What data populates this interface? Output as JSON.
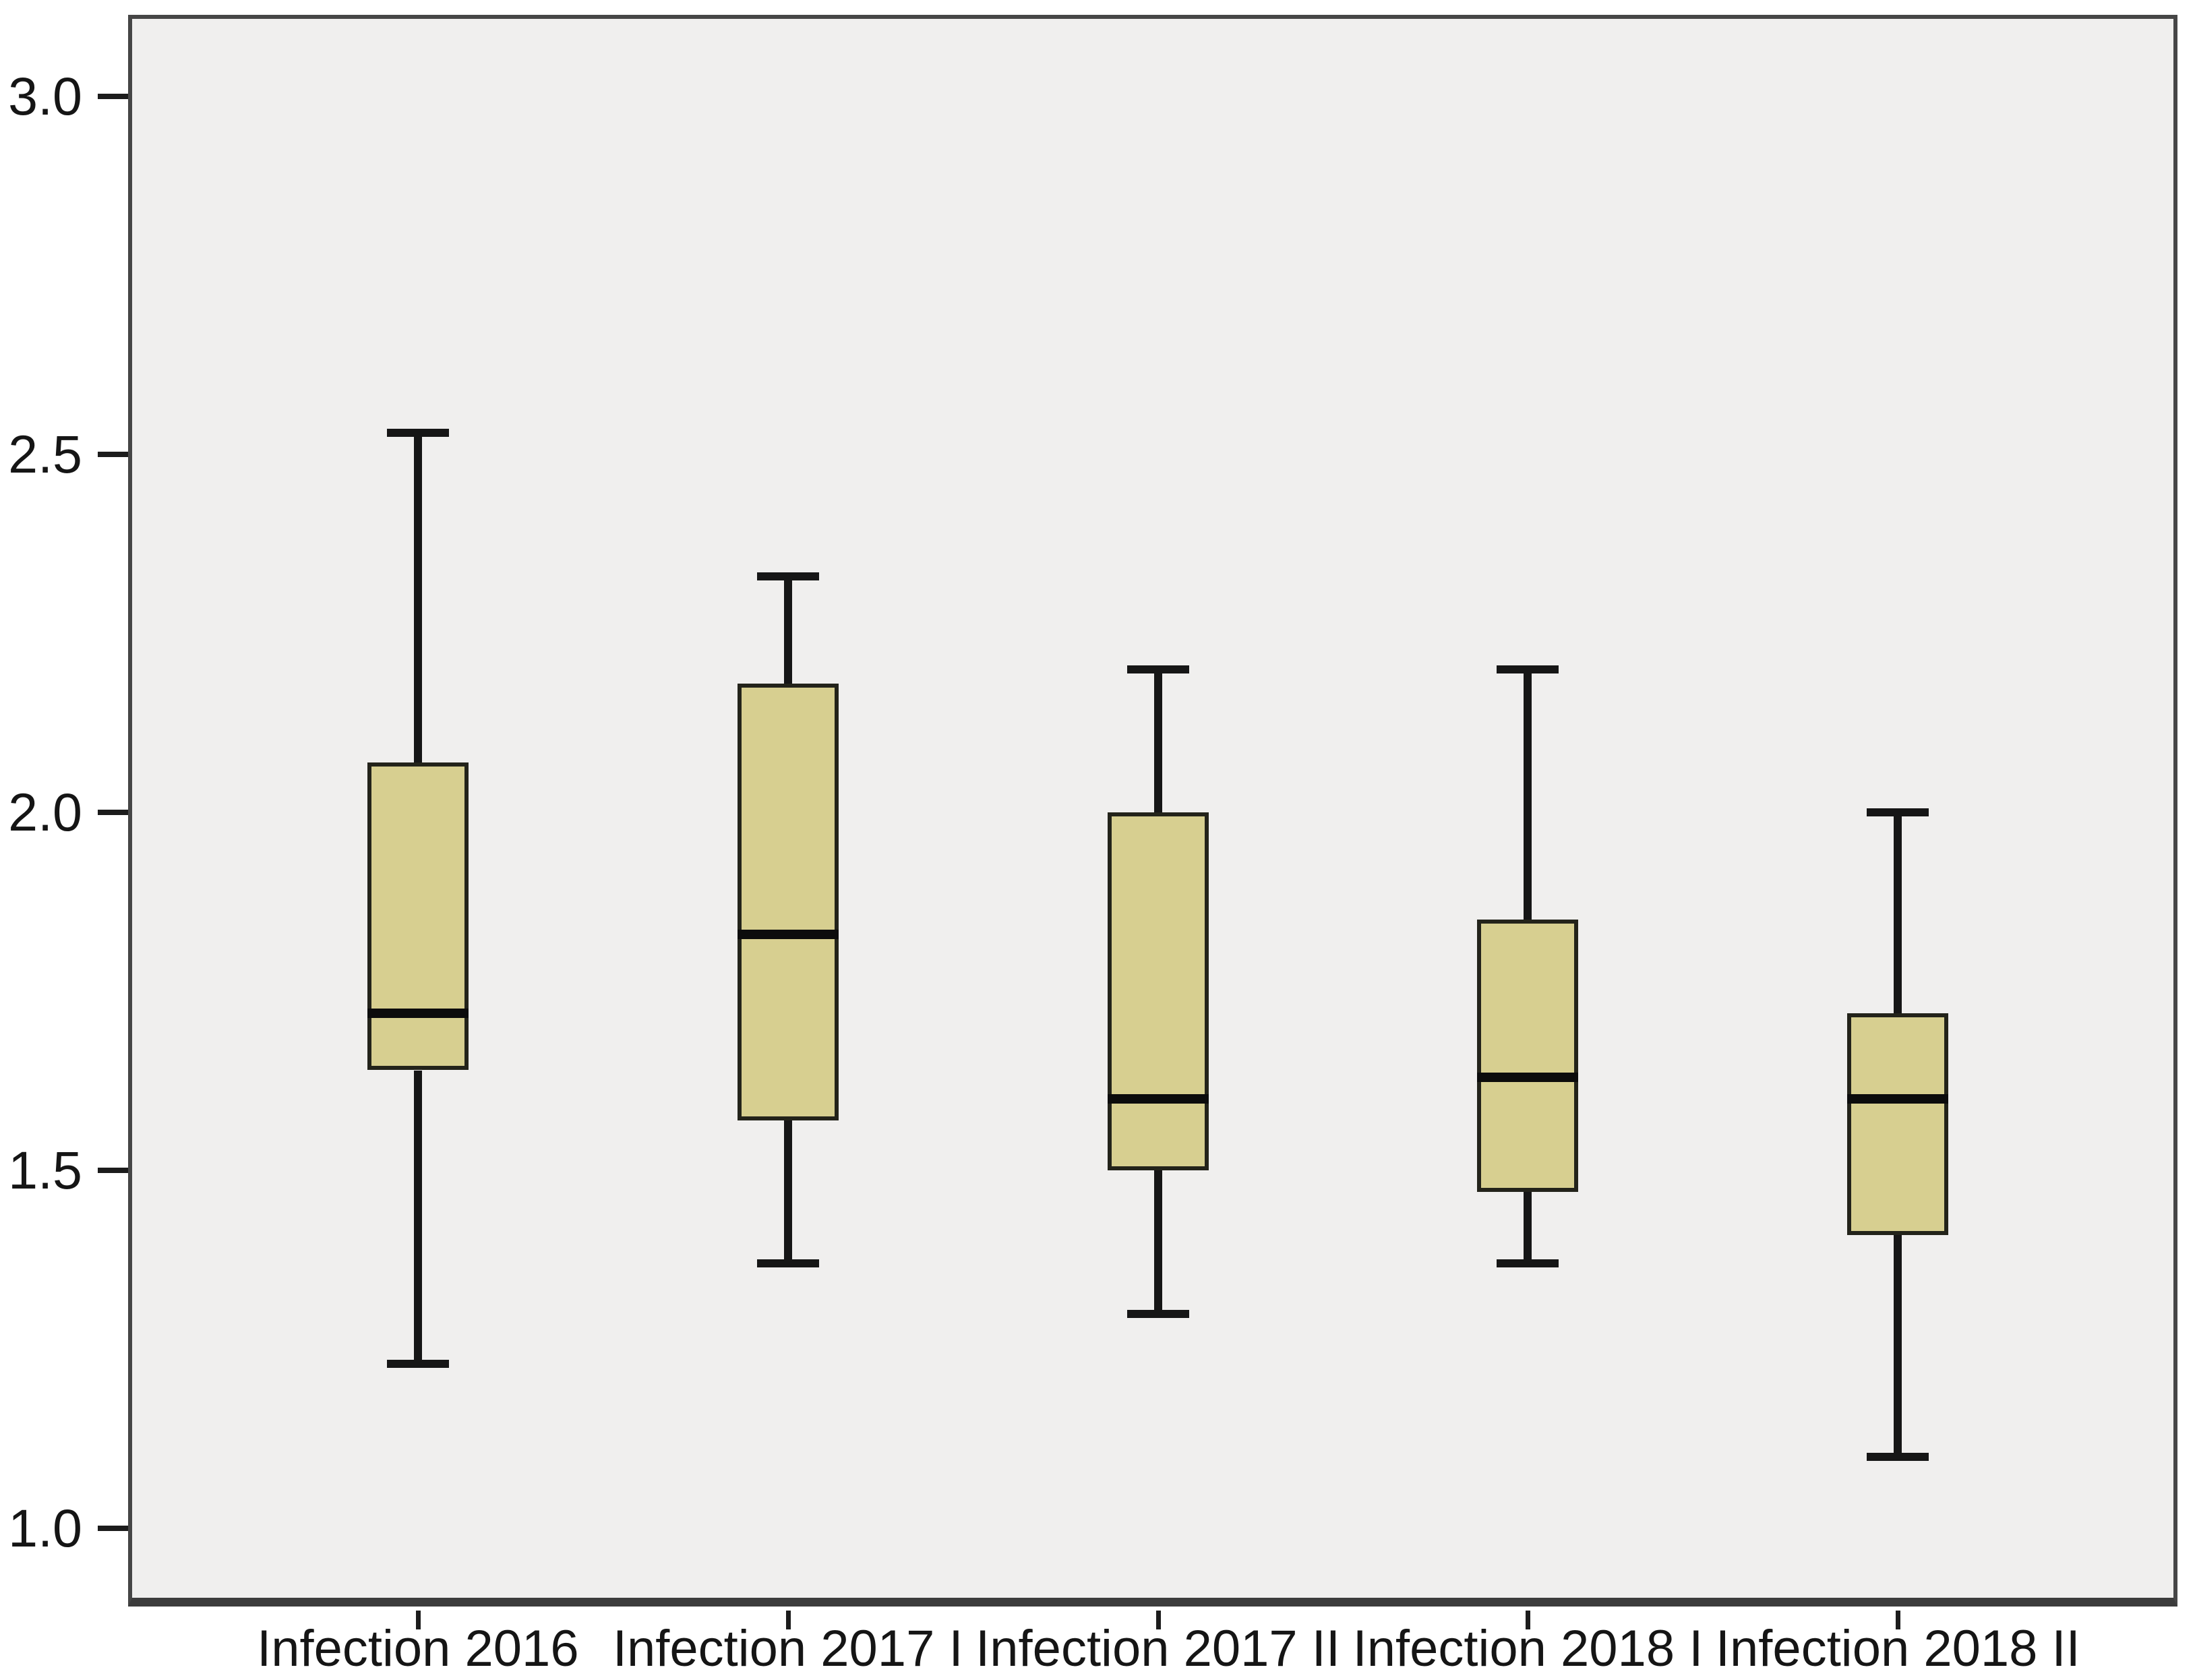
{
  "chart_data": {
    "type": "boxplot",
    "orientation": "vertical",
    "categories": [
      "Infection 2016",
      "Infection 2017 I",
      "Infection 2017 II",
      "Infection 2018 I",
      "Infection 2018 II"
    ],
    "boxes": [
      {
        "category": "Infection 2016",
        "whisker_low": 1.23,
        "q1": 1.64,
        "median": 1.72,
        "q3": 2.07,
        "whisker_high": 2.53
      },
      {
        "category": "Infection 2017 I",
        "whisker_low": 1.37,
        "q1": 1.57,
        "median": 1.83,
        "q3": 2.18,
        "whisker_high": 2.33
      },
      {
        "category": "Infection 2017 II",
        "whisker_low": 1.3,
        "q1": 1.5,
        "median": 1.6,
        "q3": 2.0,
        "whisker_high": 2.2
      },
      {
        "category": "Infection 2018 I",
        "whisker_low": 1.37,
        "q1": 1.47,
        "median": 1.63,
        "q3": 1.85,
        "whisker_high": 2.2
      },
      {
        "category": "Infection 2018 II",
        "whisker_low": 1.1,
        "q1": 1.41,
        "median": 1.6,
        "q3": 1.72,
        "whisker_high": 2.0
      }
    ],
    "yticks": [
      3.0,
      2.5,
      2.0,
      1.5,
      1.0
    ],
    "ytick_labels": [
      "3.0",
      "2.5",
      "2.0",
      "1.5",
      "1.0"
    ],
    "ylim": [
      0.891,
      3.114
    ],
    "grid": false,
    "legend": "none",
    "colors": {
      "box_fill": "#d7cf90",
      "box_border": "#23231a",
      "whisker": "#161616",
      "median": "#0c0c0c",
      "plot_background": "#f0efee",
      "page_background": "#ffffff",
      "frame": "#464646",
      "tick": "#1c1c1c",
      "label_text": "#151515"
    }
  }
}
